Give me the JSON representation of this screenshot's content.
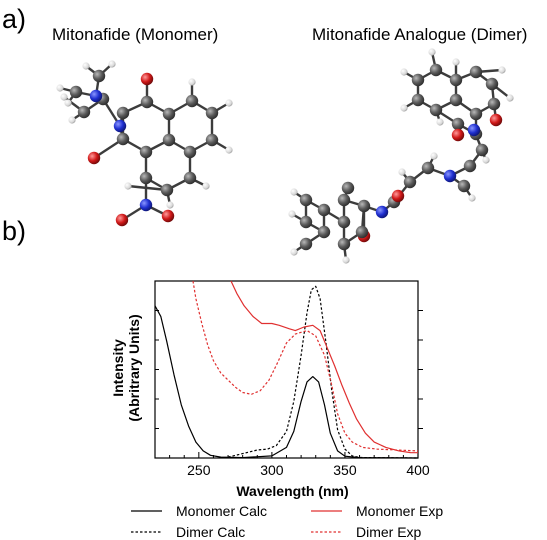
{
  "panels": {
    "a_label": "a)",
    "b_label": "b)"
  },
  "molecules": {
    "monomer_title": "Mitonafide (Monomer)",
    "dimer_title": "Mitonafide Analogue (Dimer)"
  },
  "colors": {
    "carbon": "#5a5a5a",
    "hydrogen": "#e6e6e6",
    "nitrogen": "#1f2fd0",
    "oxygen": "#d01818",
    "calc": "#000000",
    "exp": "#e03030"
  },
  "chart_data": {
    "type": "line",
    "xlabel": "Wavelength  (nm)",
    "ylabel_line1": "Intensity",
    "ylabel_line2": "(Abritrary  Units)",
    "xlim": [
      220,
      400
    ],
    "ylim": [
      0,
      1
    ],
    "xticks": [
      250,
      300,
      350,
      400
    ],
    "grid": false,
    "legend_position": "bottom",
    "series": [
      {
        "name": "Monomer Calc",
        "color": "#000000",
        "dash": "solid",
        "points": [
          [
            220,
            0.86
          ],
          [
            224,
            0.8
          ],
          [
            228,
            0.66
          ],
          [
            233,
            0.47
          ],
          [
            238,
            0.3
          ],
          [
            243,
            0.18
          ],
          [
            248,
            0.09
          ],
          [
            253,
            0.04
          ],
          [
            258,
            0.015
          ],
          [
            265,
            0.005
          ],
          [
            280,
            0.002
          ],
          [
            300,
            0.012
          ],
          [
            310,
            0.06
          ],
          [
            315,
            0.15
          ],
          [
            320,
            0.32
          ],
          [
            324,
            0.43
          ],
          [
            328,
            0.46
          ],
          [
            332,
            0.43
          ],
          [
            336,
            0.3
          ],
          [
            340,
            0.14
          ],
          [
            345,
            0.04
          ],
          [
            350,
            0.01
          ],
          [
            360,
            0.002
          ],
          [
            400,
            0.0
          ]
        ]
      },
      {
        "name": "Dimer Calc",
        "color": "#000000",
        "dash": "dotted",
        "points": [
          [
            270,
            0.005
          ],
          [
            280,
            0.025
          ],
          [
            290,
            0.045
          ],
          [
            297,
            0.05
          ],
          [
            303,
            0.07
          ],
          [
            310,
            0.15
          ],
          [
            315,
            0.32
          ],
          [
            320,
            0.58
          ],
          [
            324,
            0.82
          ],
          [
            327,
            0.95
          ],
          [
            330,
            0.97
          ],
          [
            333,
            0.9
          ],
          [
            337,
            0.65
          ],
          [
            341,
            0.38
          ],
          [
            345,
            0.16
          ],
          [
            350,
            0.05
          ],
          [
            355,
            0.012
          ],
          [
            360,
            0.003
          ],
          [
            400,
            0.0
          ]
        ]
      },
      {
        "name": "Monomer Exp",
        "color": "#e03030",
        "dash": "solid",
        "points": [
          [
            272,
            1.0
          ],
          [
            276,
            0.93
          ],
          [
            281,
            0.86
          ],
          [
            287,
            0.8
          ],
          [
            293,
            0.76
          ],
          [
            300,
            0.76
          ],
          [
            305,
            0.75
          ],
          [
            312,
            0.73
          ],
          [
            316,
            0.72
          ],
          [
            322,
            0.74
          ],
          [
            328,
            0.75
          ],
          [
            333,
            0.72
          ],
          [
            338,
            0.62
          ],
          [
            343,
            0.52
          ],
          [
            348,
            0.41
          ],
          [
            353,
            0.31
          ],
          [
            358,
            0.22
          ],
          [
            364,
            0.14
          ],
          [
            370,
            0.09
          ],
          [
            378,
            0.06
          ],
          [
            387,
            0.04
          ],
          [
            395,
            0.03
          ],
          [
            400,
            0.03
          ]
        ]
      },
      {
        "name": "Dimer Exp",
        "color": "#e03030",
        "dash": "dotted",
        "points": [
          [
            246,
            1.0
          ],
          [
            248,
            0.9
          ],
          [
            252,
            0.76
          ],
          [
            256,
            0.64
          ],
          [
            260,
            0.55
          ],
          [
            265,
            0.48
          ],
          [
            270,
            0.44
          ],
          [
            275,
            0.4
          ],
          [
            280,
            0.37
          ],
          [
            286,
            0.36
          ],
          [
            292,
            0.38
          ],
          [
            298,
            0.44
          ],
          [
            304,
            0.54
          ],
          [
            310,
            0.65
          ],
          [
            316,
            0.7
          ],
          [
            320,
            0.71
          ],
          [
            324,
            0.72
          ],
          [
            330,
            0.69
          ],
          [
            336,
            0.58
          ],
          [
            341,
            0.41
          ],
          [
            345,
            0.25
          ],
          [
            350,
            0.14
          ],
          [
            355,
            0.09
          ],
          [
            362,
            0.06
          ],
          [
            372,
            0.05
          ],
          [
            385,
            0.045
          ],
          [
            400,
            0.04
          ]
        ]
      }
    ]
  }
}
